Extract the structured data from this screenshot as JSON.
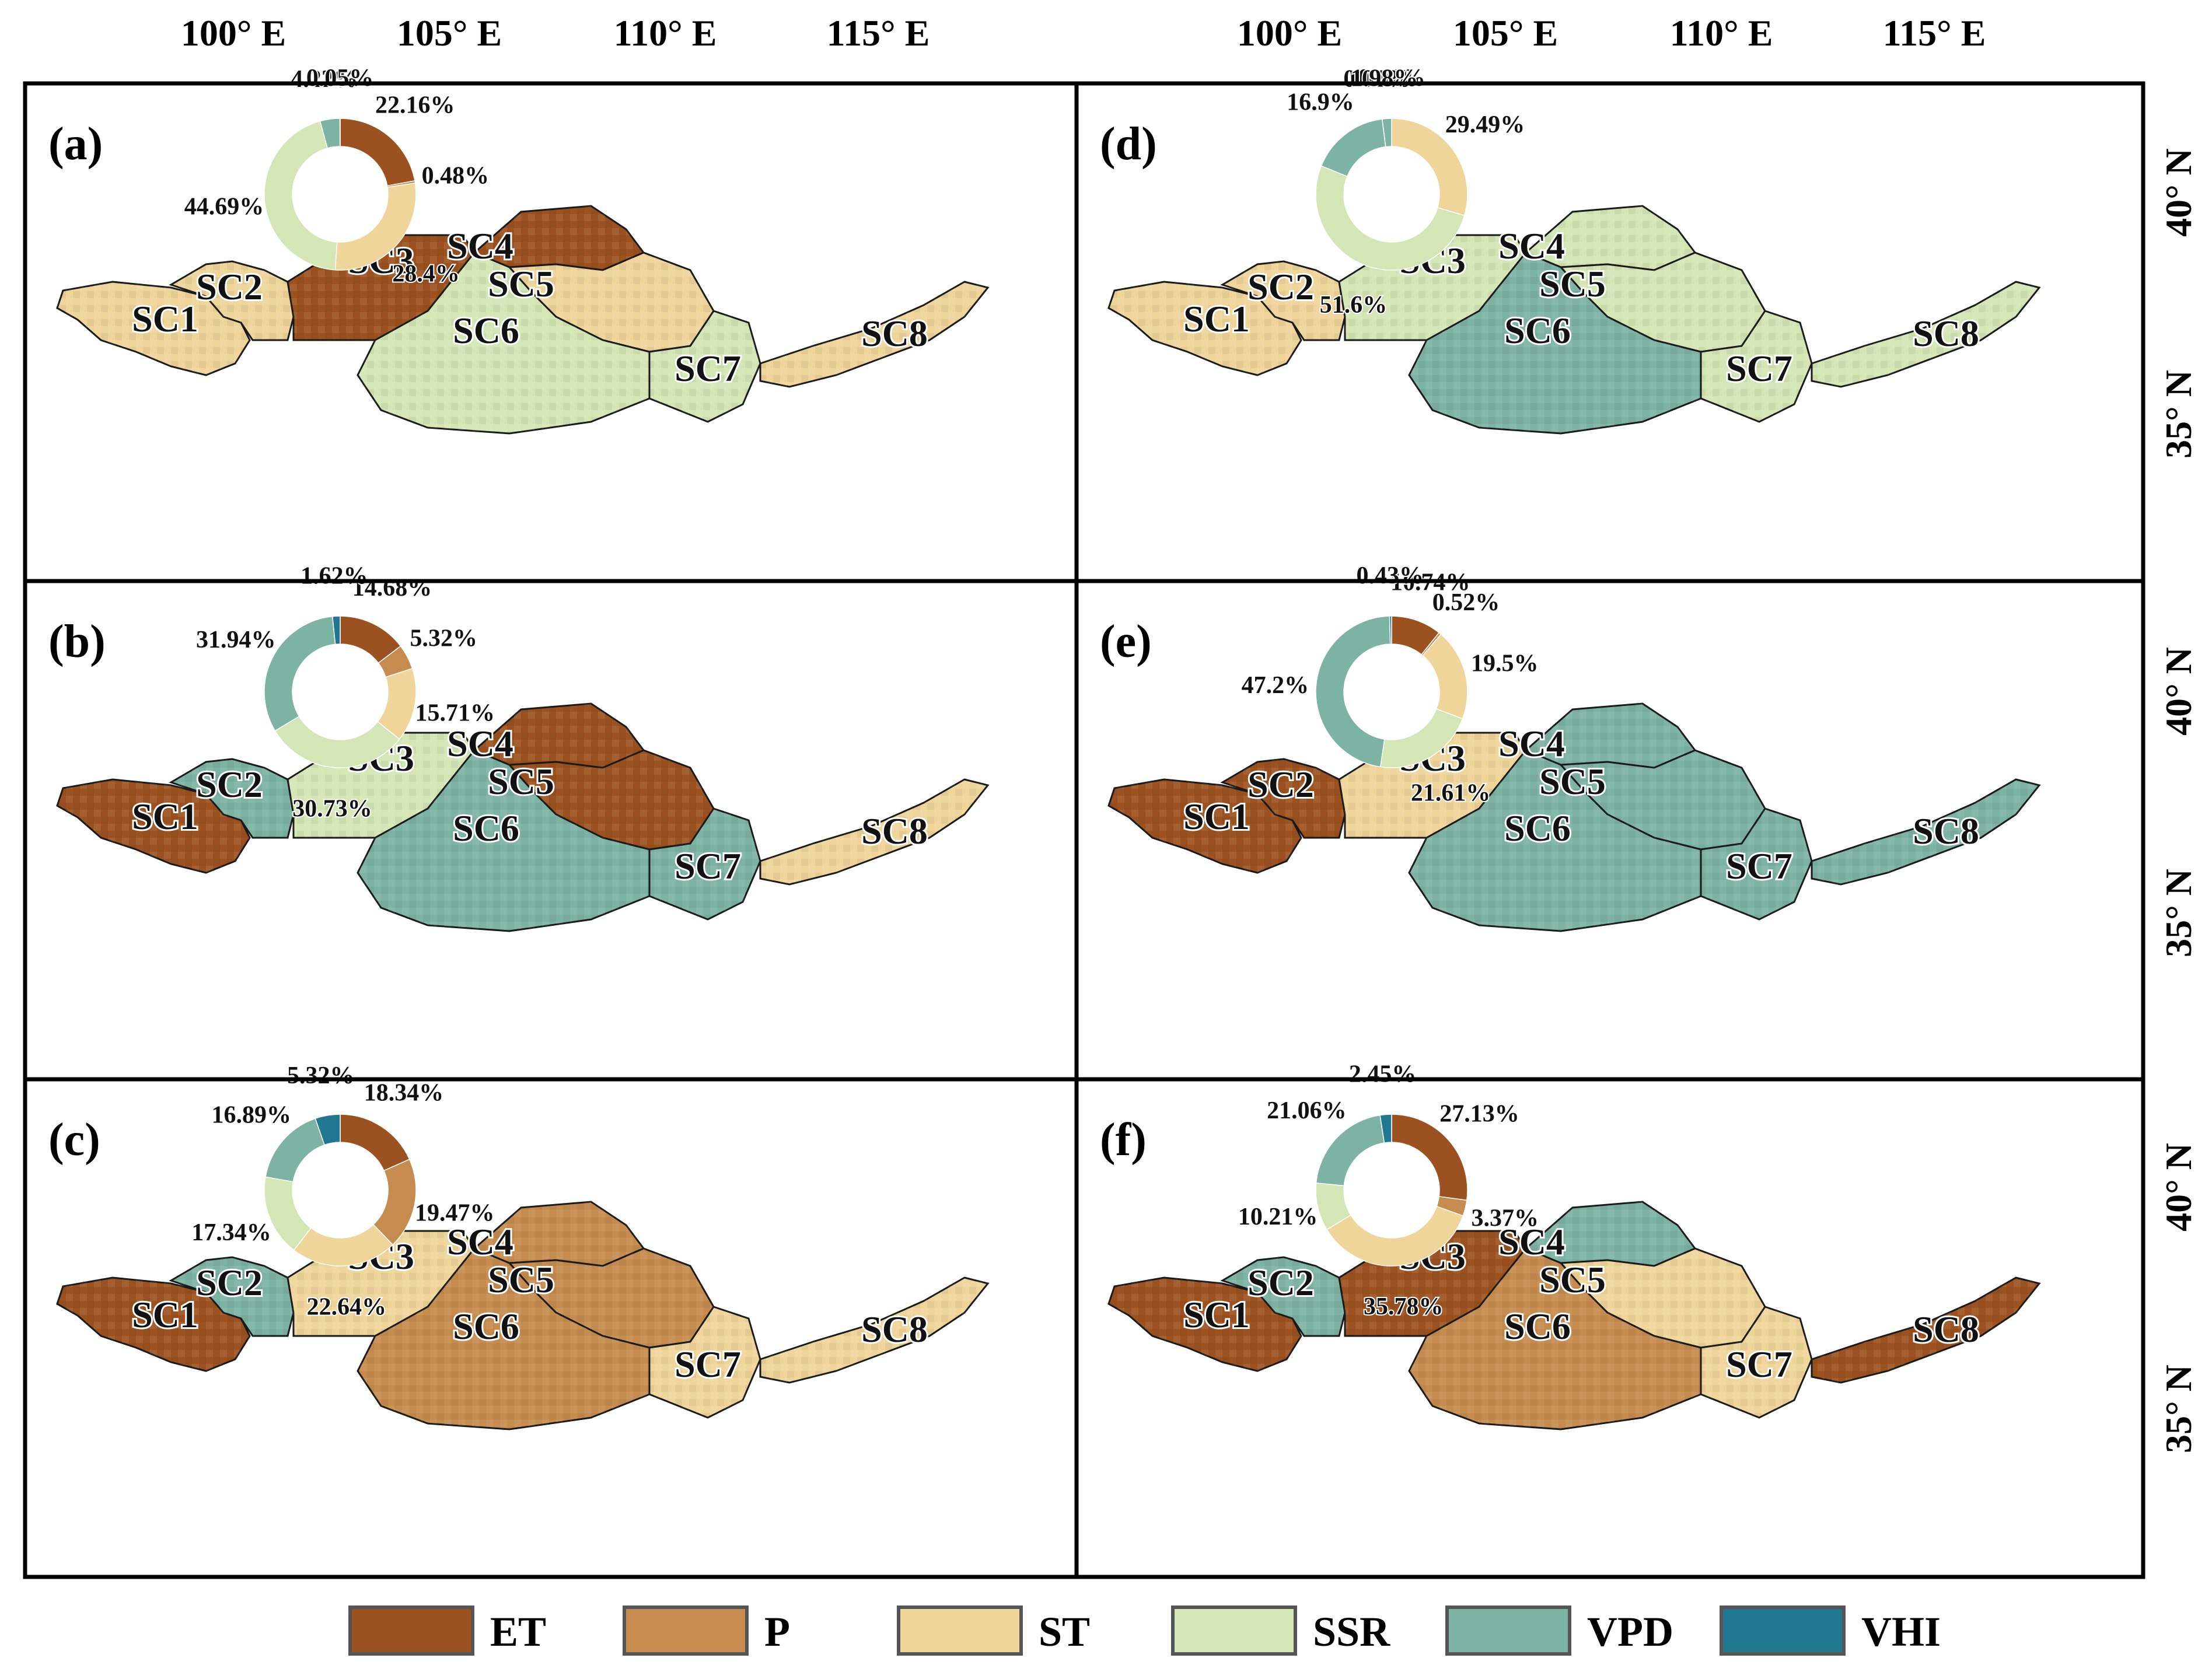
{
  "colors": {
    "ET": "#9c5220",
    "P": "#c68c4f",
    "ST": "#efd59a",
    "SSR": "#d4e6b5",
    "VPD": "#7db3a3",
    "VHI": "#1f7890"
  },
  "axes": {
    "lon_ticks": [
      "100° E",
      "105° E",
      "110° E",
      "115° E"
    ],
    "lat_ticks": [
      "40° N",
      "35° N"
    ]
  },
  "legend": [
    {
      "name": "ET",
      "color": "#9c5220"
    },
    {
      "name": "P",
      "color": "#c68c4f"
    },
    {
      "name": "ST",
      "color": "#efd59a"
    },
    {
      "name": "SSR",
      "color": "#d4e6b5"
    },
    {
      "name": "VPD",
      "color": "#7db3a3"
    },
    {
      "name": "VHI",
      "color": "#1f7890"
    }
  ],
  "subregions": [
    "SC1",
    "SC2",
    "SC3",
    "SC4",
    "SC5",
    "SC6",
    "SC7",
    "SC8"
  ],
  "panels": [
    {
      "label": "(a)",
      "region_colors": {
        "SC1": "ST",
        "SC2": "ST",
        "SC3": "ET",
        "SC4": "ET",
        "SC5": "ST",
        "SC6": "SSR",
        "SC7": "SSR",
        "SC8": "ST"
      },
      "donut": [
        {
          "factor": "ET",
          "value": 22.16,
          "label": "22.16%"
        },
        {
          "factor": "P",
          "value": 0.48,
          "label": "0.48%"
        },
        {
          "factor": "ST",
          "value": 28.4,
          "label": "28.4%"
        },
        {
          "factor": "SSR",
          "value": 44.69,
          "label": "44.69%"
        },
        {
          "factor": "VPD",
          "value": 4.22,
          "label": "4.22%"
        },
        {
          "factor": "VHI",
          "value": 0.05,
          "label": "0.05%"
        }
      ]
    },
    {
      "label": "(b)",
      "region_colors": {
        "SC1": "ET",
        "SC2": "VPD",
        "SC3": "SSR",
        "SC4": "ET",
        "SC5": "ET",
        "SC6": "VPD",
        "SC7": "VPD",
        "SC8": "ST"
      },
      "donut": [
        {
          "factor": "ET",
          "value": 14.68,
          "label": "14.68%"
        },
        {
          "factor": "P",
          "value": 5.32,
          "label": "5.32%"
        },
        {
          "factor": "ST",
          "value": 15.71,
          "label": "15.71%"
        },
        {
          "factor": "SSR",
          "value": 30.73,
          "label": "30.73%"
        },
        {
          "factor": "VPD",
          "value": 31.94,
          "label": "31.94%"
        },
        {
          "factor": "VHI",
          "value": 1.62,
          "label": "1.62%"
        }
      ]
    },
    {
      "label": "(c)",
      "region_colors": {
        "SC1": "ET",
        "SC2": "VPD",
        "SC3": "ST",
        "SC4": "P",
        "SC5": "P",
        "SC6": "P",
        "SC7": "ST",
        "SC8": "ST"
      },
      "donut": [
        {
          "factor": "ET",
          "value": 18.34,
          "label": "18.34%"
        },
        {
          "factor": "P",
          "value": 19.47,
          "label": "19.47%"
        },
        {
          "factor": "ST",
          "value": 22.64,
          "label": "22.64%"
        },
        {
          "factor": "SSR",
          "value": 17.34,
          "label": "17.34%"
        },
        {
          "factor": "VPD",
          "value": 16.89,
          "label": "16.89%"
        },
        {
          "factor": "VHI",
          "value": 5.32,
          "label": "5.32%"
        }
      ]
    },
    {
      "label": "(d)",
      "region_colors": {
        "SC1": "ST",
        "SC2": "ST",
        "SC3": "SSR",
        "SC4": "SSR",
        "SC5": "SSR",
        "SC6": "VPD",
        "SC7": "SSR",
        "SC8": "SSR"
      },
      "donut": [
        {
          "factor": "ET",
          "value": 0.02,
          "label": "0.02%"
        },
        {
          "factor": "P",
          "value": 0.0,
          "label": ""
        },
        {
          "factor": "ST",
          "value": 29.49,
          "label": "29.49%"
        },
        {
          "factor": "SSR",
          "value": 51.6,
          "label": "51.6%"
        },
        {
          "factor": "VPD",
          "value": 16.9,
          "label": "16.9%"
        },
        {
          "factor": "VHI",
          "value": 0.01,
          "label": "0.01%"
        },
        {
          "factor": "VPD",
          "value": 1.98,
          "label": "1.98%"
        }
      ]
    },
    {
      "label": "(e)",
      "region_colors": {
        "SC1": "ET",
        "SC2": "ET",
        "SC3": "ST",
        "SC4": "VPD",
        "SC5": "VPD",
        "SC6": "VPD",
        "SC7": "VPD",
        "SC8": "VPD"
      },
      "donut": [
        {
          "factor": "ET",
          "value": 10.74,
          "label": "10.74%"
        },
        {
          "factor": "P",
          "value": 0.52,
          "label": "0.52%"
        },
        {
          "factor": "ST",
          "value": 19.5,
          "label": "19.5%"
        },
        {
          "factor": "SSR",
          "value": 21.61,
          "label": "21.61%"
        },
        {
          "factor": "VPD",
          "value": 47.2,
          "label": "47.2%"
        },
        {
          "factor": "VHI",
          "value": 0.43,
          "label": "0.43%"
        }
      ]
    },
    {
      "label": "(f)",
      "region_colors": {
        "SC1": "ET",
        "SC2": "VPD",
        "SC3": "ET",
        "SC4": "VPD",
        "SC5": "ST",
        "SC6": "P",
        "SC7": "ST",
        "SC8": "ET"
      },
      "donut": [
        {
          "factor": "ET",
          "value": 27.13,
          "label": "27.13%"
        },
        {
          "factor": "P",
          "value": 3.37,
          "label": "3.37%"
        },
        {
          "factor": "ST",
          "value": 35.78,
          "label": "35.78%"
        },
        {
          "factor": "SSR",
          "value": 10.21,
          "label": "10.21%"
        },
        {
          "factor": "VPD",
          "value": 21.06,
          "label": "21.06%"
        },
        {
          "factor": "VHI",
          "value": 2.45,
          "label": "2.45%"
        }
      ]
    }
  ]
}
